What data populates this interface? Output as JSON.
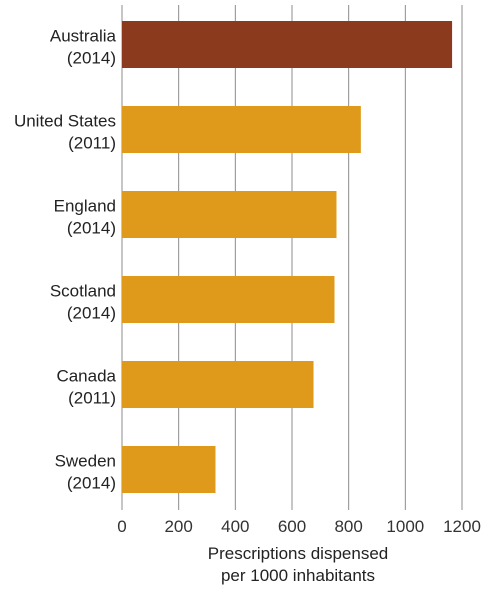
{
  "chart_data": {
    "type": "bar",
    "orientation": "horizontal",
    "categories": [
      [
        "Australia",
        "(2014)"
      ],
      [
        "United States",
        "(2011)"
      ],
      [
        "England",
        "(2014)"
      ],
      [
        "Scotland",
        "(2014)"
      ],
      [
        "Canada",
        "(2011)"
      ],
      [
        "Sweden",
        "(2014)"
      ]
    ],
    "values": [
      1165,
      843,
      757,
      750,
      676,
      330
    ],
    "bar_colors": [
      "#8b3a1e",
      "#e09a1b",
      "#e09a1b",
      "#e09a1b",
      "#e09a1b",
      "#e09a1b"
    ],
    "xlabel": [
      "Prescriptions dispensed",
      "per 1000 inhabitants"
    ],
    "ylabel": "",
    "title": "",
    "xlim": [
      0,
      1200
    ],
    "xticks": [
      0,
      200,
      400,
      600,
      800,
      1000,
      1200
    ],
    "grid": "vertical",
    "grid_color": "#8c8c8c",
    "legend": "none"
  }
}
